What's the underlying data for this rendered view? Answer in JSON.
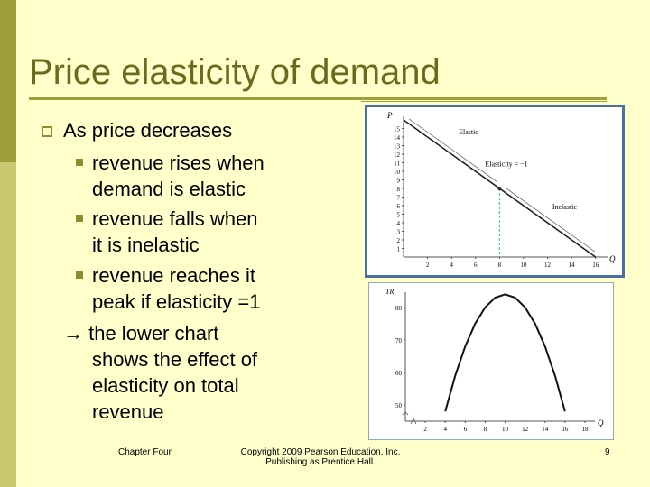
{
  "slide": {
    "title": "Price elasticity of demand",
    "bullets": {
      "main": "As price decreases",
      "sub1_line1": "revenue rises when",
      "sub1_line2": "demand is elastic",
      "sub2_line1": "revenue falls when",
      "sub2_line2": "it is inelastic",
      "sub3_line1": "revenue reaches it",
      "sub3_line2": "peak if elasticity =1",
      "note_line1": "→ the lower chart",
      "note_line2": "shows the effect of",
      "note_line3": "elasticity on total",
      "note_line4": "revenue"
    },
    "footer": {
      "left": "Chapter Four",
      "center_line1": "Copyright 2009 Pearson Education, Inc.",
      "center_line2": "Publishing as Prentice Hall.",
      "page": "9"
    },
    "colors": {
      "background": "#FFFFCC",
      "accent": "#9E9E3A",
      "title": "#6B6B1E",
      "panel_border": "#4A6FA0",
      "unit_elastic_marker": "#3FA9C9"
    }
  },
  "chart_data": [
    {
      "type": "line",
      "ylabel": "P",
      "xlabel": "Q",
      "x_ticks": [
        "2",
        "4",
        "6",
        "8",
        "10",
        "12",
        "14",
        "16"
      ],
      "y_ticks": [
        "1",
        "2",
        "3",
        "4",
        "5",
        "6",
        "7",
        "8",
        "9",
        "10",
        "11",
        "12",
        "13",
        "14",
        "15"
      ],
      "xlim": [
        0,
        17
      ],
      "ylim": [
        0,
        16
      ],
      "series": [
        {
          "x": [
            0,
            16
          ],
          "y": [
            16,
            0
          ]
        }
      ],
      "annotations": {
        "elastic": "Elastic",
        "unit": "Elasticity = −1",
        "inelastic": "Inelastic"
      },
      "unit_elastic_point": {
        "x": 8,
        "y": 8
      }
    },
    {
      "type": "line",
      "ylabel": "TR",
      "xlabel": "Q",
      "x_ticks": [
        "2",
        "4",
        "6",
        "8",
        "10",
        "12",
        "14",
        "16",
        "18"
      ],
      "y_ticks": [
        "50",
        "60",
        "70",
        "80"
      ],
      "xlim": [
        0,
        19
      ],
      "ylim": [
        45,
        83
      ],
      "series": [
        {
          "x": [
            4,
            5,
            6,
            7,
            8,
            9,
            10,
            11,
            12,
            13,
            14,
            15,
            16
          ],
          "y": [
            48,
            59,
            68,
            75,
            80,
            83,
            84,
            83,
            80,
            75,
            68,
            59,
            48
          ]
        }
      ]
    }
  ]
}
